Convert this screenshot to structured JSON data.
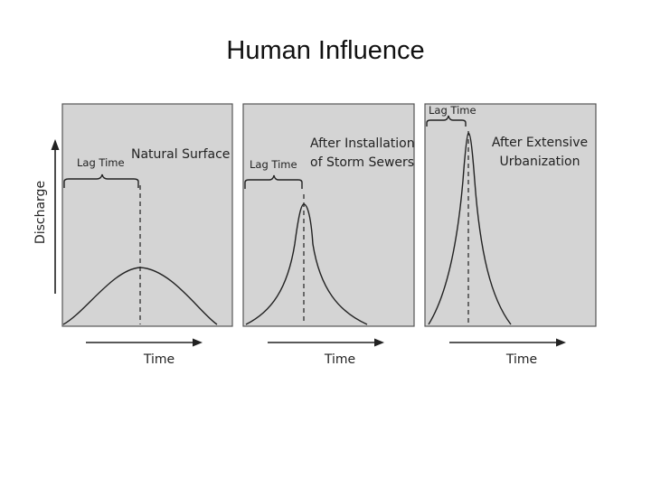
{
  "title": "Human Influence",
  "y_axis_label": "Discharge",
  "panels": [
    {
      "lag_label": "Lag Time",
      "caption_lines": [
        "Natural Surface"
      ],
      "time_label": "Time"
    },
    {
      "lag_label": "Lag Time",
      "caption_lines": [
        "After Installation",
        "of Storm Sewers"
      ],
      "time_label": "Time"
    },
    {
      "lag_label": "Lag Time",
      "caption_lines": [
        "After Extensive",
        "Urbanization"
      ],
      "time_label": "Time"
    }
  ],
  "colors": {
    "panel_fill": "#d4d4d4",
    "line": "#222222"
  }
}
